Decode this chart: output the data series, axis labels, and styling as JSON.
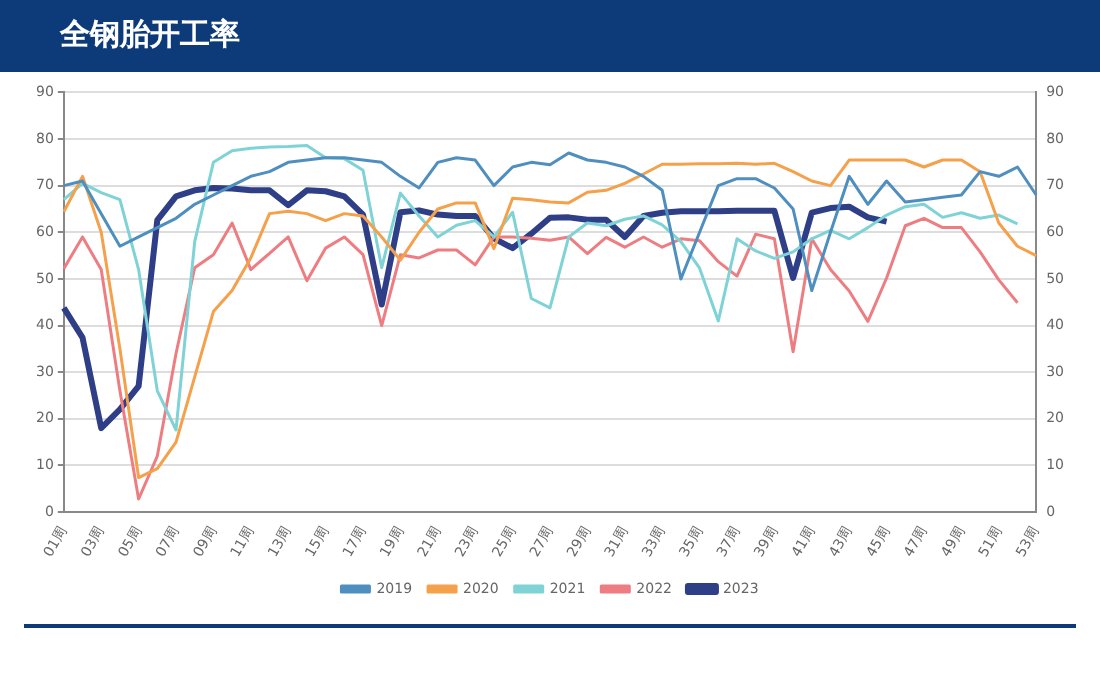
{
  "chart_data": {
    "type": "line",
    "title": "全钢胎开工率",
    "categories": [
      "01周",
      null,
      "03周",
      null,
      "05周",
      null,
      "07周",
      null,
      "09周",
      null,
      "11周",
      null,
      "13周",
      null,
      "15周",
      null,
      "17周",
      null,
      "19周",
      null,
      "21周",
      null,
      "23周",
      null,
      "25周",
      null,
      "27周",
      null,
      "29周",
      null,
      "31周",
      null,
      "33周",
      null,
      "35周",
      null,
      "37周",
      null,
      "39周",
      null,
      "41周",
      null,
      "43周",
      null,
      "45周",
      null,
      "47周",
      null,
      "49周",
      null,
      "51周",
      null,
      "53周"
    ],
    "series": [
      {
        "name": "2019",
        "color": "#4f8fbf",
        "values": [
          70,
          71,
          64,
          57,
          59,
          61,
          63,
          66,
          68,
          70,
          72,
          73,
          75,
          75.5,
          76,
          76,
          75.5,
          75,
          72,
          69.5,
          75,
          76,
          75.5,
          70,
          74,
          75,
          74.5,
          77,
          75.5,
          75,
          74,
          72,
          69,
          50,
          60,
          70,
          71.5,
          71.5,
          69.5,
          65,
          47.5,
          60,
          72,
          66,
          71,
          66.5,
          67,
          67.5,
          68,
          73,
          72,
          74,
          68
        ]
      },
      {
        "name": "2020",
        "color": "#f5a04a",
        "values": [
          64.4,
          72,
          60,
          35,
          7.4,
          9.3,
          15,
          29,
          43,
          47.5,
          54.5,
          64,
          64.5,
          64,
          62.5,
          64,
          63.5,
          59,
          54,
          60,
          65,
          66.3,
          66.3,
          56.5,
          67.3,
          67,
          66.5,
          66.3,
          68.6,
          69,
          70.5,
          72.5,
          74.6,
          74.6,
          74.7,
          74.7,
          74.8,
          74.6,
          74.8,
          73,
          71,
          70,
          75.5,
          75.5,
          75.5,
          75.5,
          74,
          75.5,
          75.5,
          73,
          62,
          57,
          55
        ]
      },
      {
        "name": "2021",
        "color": "#7fd3d6",
        "values": [
          67,
          70.5,
          68.5,
          67,
          52,
          26,
          17.6,
          58,
          75,
          77.5,
          78,
          78.3,
          78.4,
          78.6,
          76,
          75.8,
          73.3,
          52.4,
          68.4,
          63.5,
          59,
          61.5,
          62.5,
          59,
          64.3,
          45.8,
          43.8,
          59,
          62,
          61.4,
          62.8,
          63.5,
          61.6,
          58,
          52.3,
          41,
          58.6,
          56,
          54.4,
          55.8,
          58.6,
          60.4,
          58.6,
          61,
          63.7,
          65.5,
          66,
          63.2,
          64.2,
          63,
          63.7,
          61.8,
          null
        ]
      },
      {
        "name": "2022",
        "color": "#ee7d82",
        "values": [
          52.2,
          59,
          52,
          26,
          2.8,
          12,
          34,
          52.4,
          55.2,
          62,
          52,
          55.5,
          59,
          49.6,
          56.6,
          59,
          55.2,
          40,
          55.2,
          54.5,
          56.2,
          56.2,
          53,
          59,
          59,
          58.7,
          58.3,
          59,
          55.4,
          58.9,
          56.8,
          59,
          56.8,
          58.6,
          58.2,
          53.7,
          50.6,
          59.6,
          58.6,
          34.4,
          58.6,
          52,
          47.4,
          40.9,
          50.2,
          61.4,
          63,
          61,
          61,
          55.8,
          49.8,
          44.9,
          null
        ]
      },
      {
        "name": "2023",
        "color": "#2e3f87",
        "values": [
          43.8,
          37.4,
          18,
          22,
          27,
          62.6,
          67.7,
          69,
          69.5,
          69.4,
          69,
          69,
          65.8,
          69,
          68.8,
          67.7,
          63.8,
          44.5,
          64.3,
          64.7,
          63.8,
          63.5,
          63.5,
          58.7,
          56.6,
          59.7,
          63.1,
          63.2,
          62.7,
          62.7,
          59,
          63.5,
          64.2,
          64.5,
          64.5,
          64.5,
          64.6,
          64.6,
          64.6,
          50.2,
          64.2,
          65.2,
          65.5,
          63.2,
          62.3,
          null,
          null,
          null,
          null,
          null,
          null,
          null,
          null
        ]
      }
    ],
    "ylim": [
      0,
      90
    ],
    "yticks": [
      0,
      10,
      20,
      30,
      40,
      50,
      60,
      70,
      80,
      90
    ],
    "y2lim": [
      0,
      90
    ],
    "y2ticks": [
      0,
      10,
      20,
      30,
      40,
      50,
      60,
      70,
      80,
      90
    ],
    "grid": "y",
    "legend": "bottom",
    "marker": "none",
    "line_style": "solid"
  }
}
